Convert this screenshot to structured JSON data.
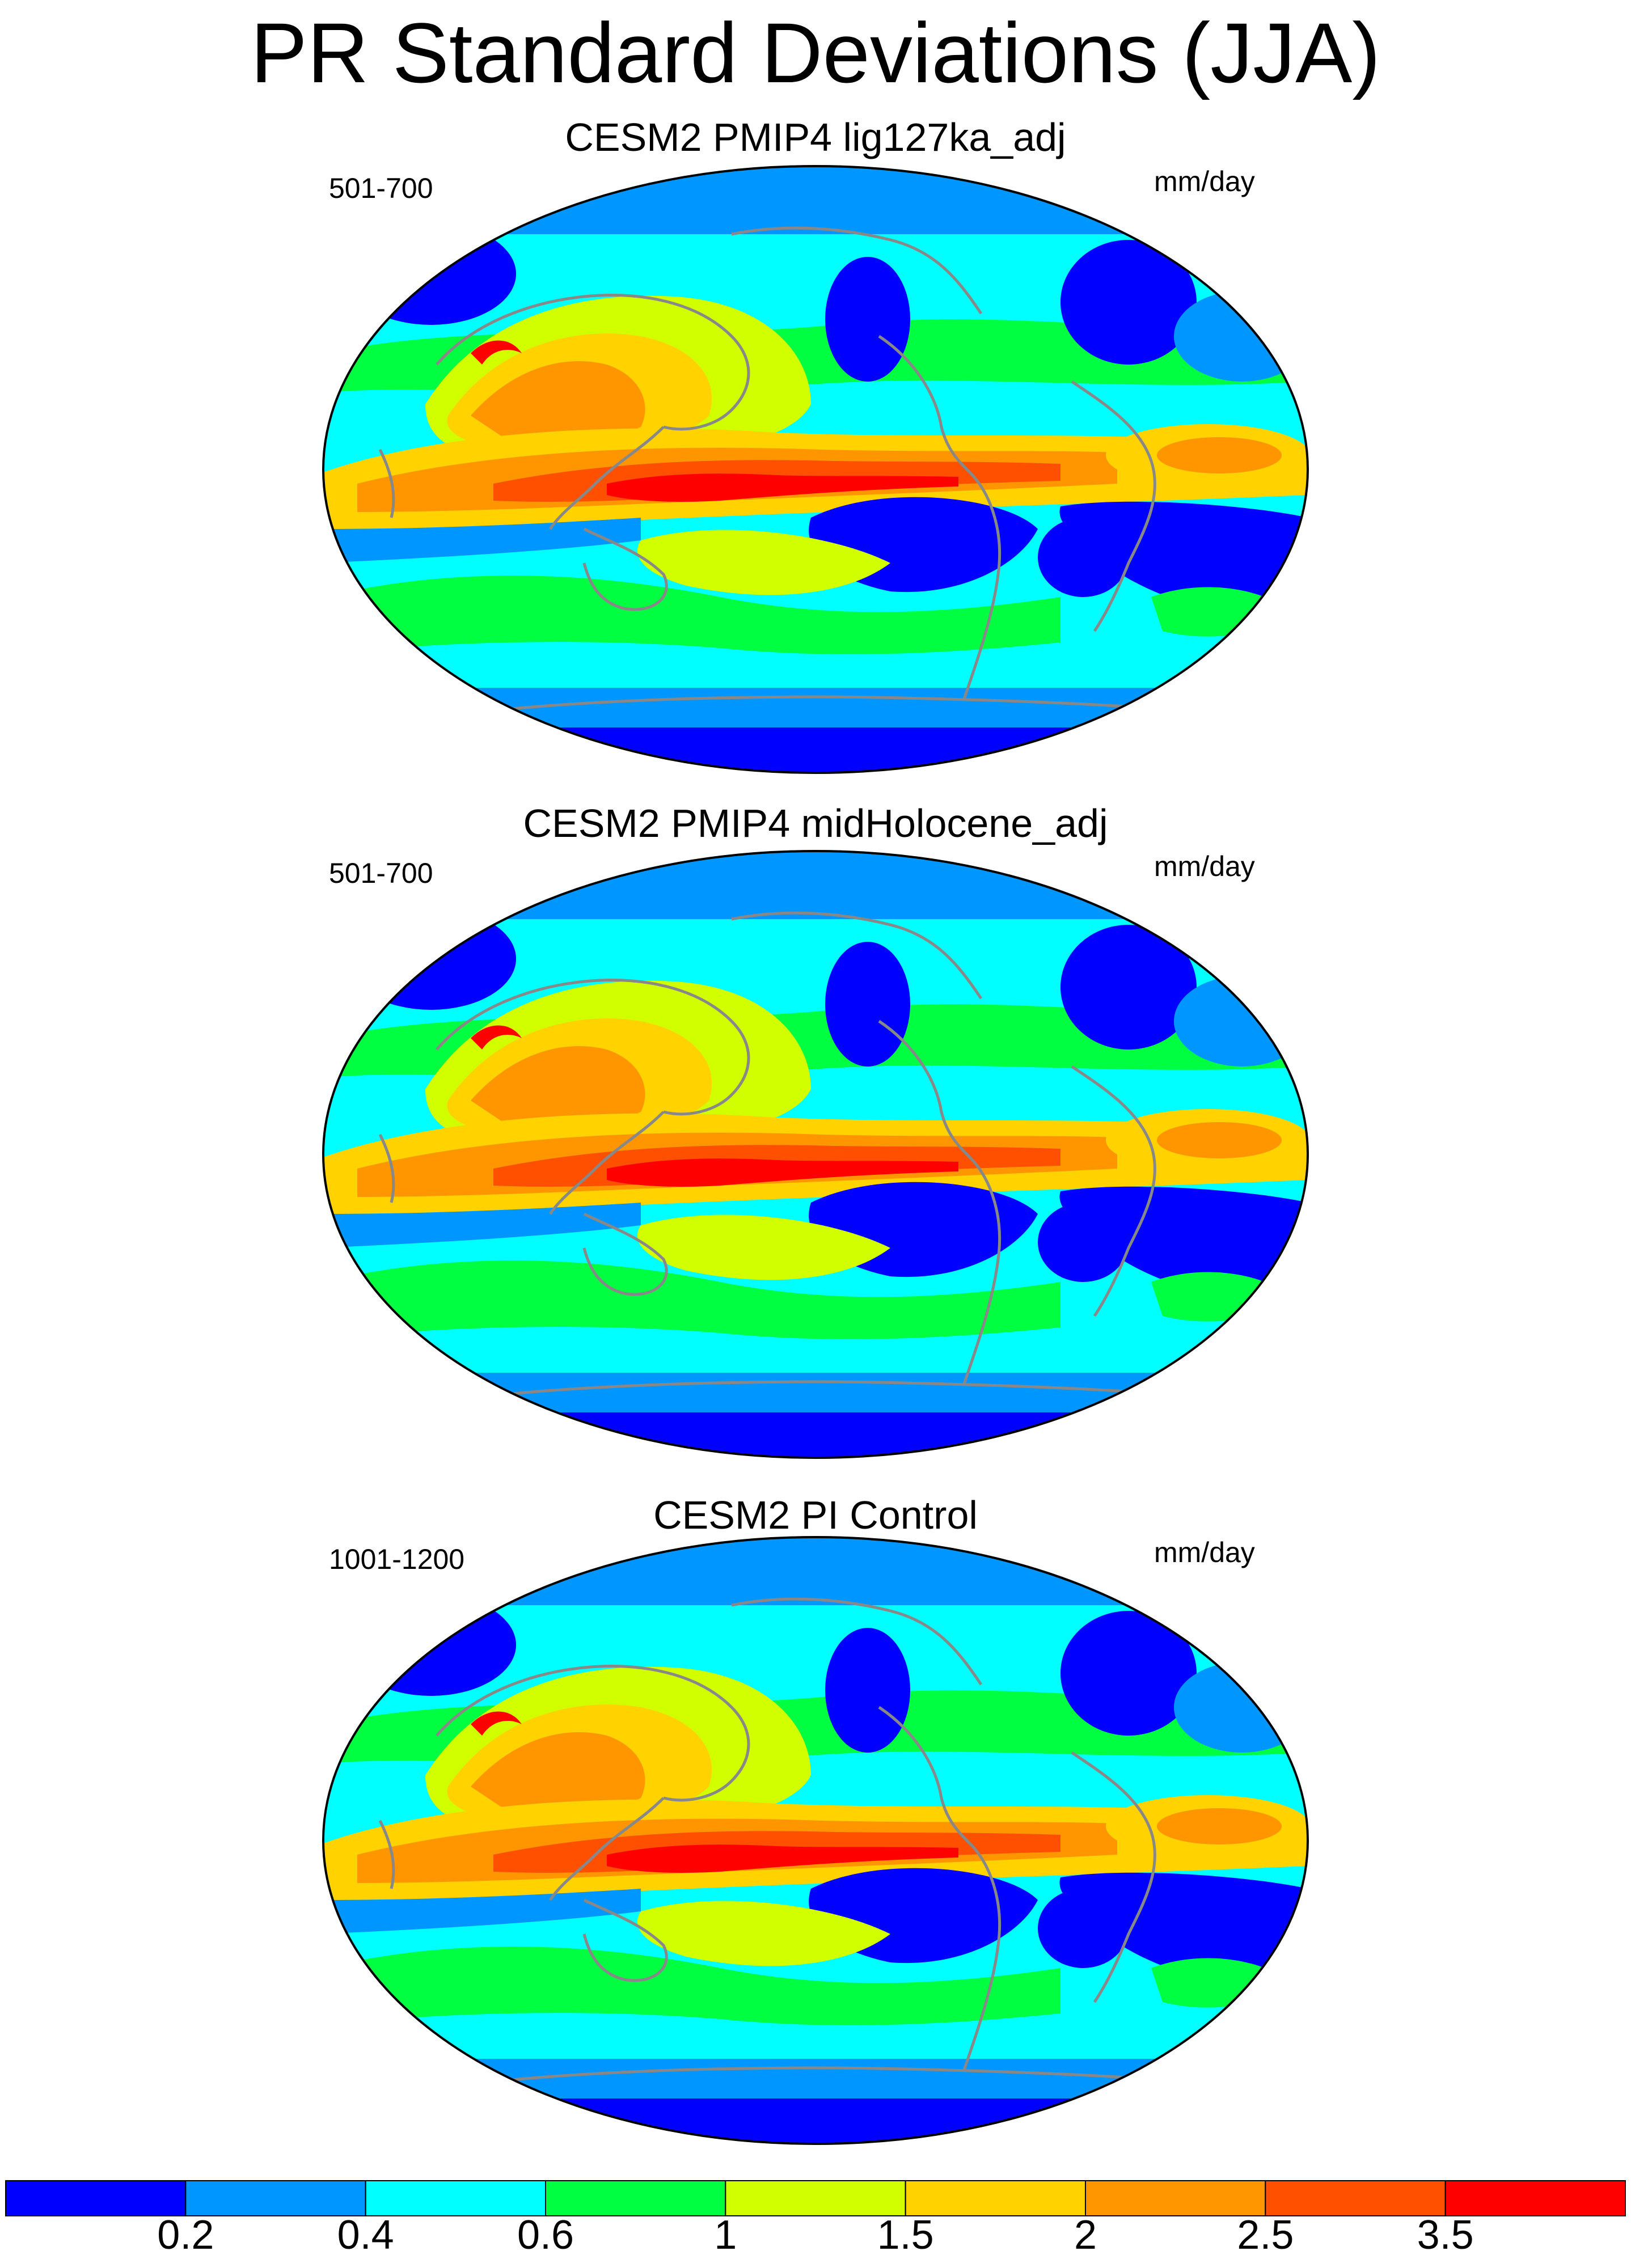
{
  "title": "PR Standard Deviations (JJA)",
  "panels": [
    {
      "title": "CESM2 PMIP4 lig127ka_adj",
      "left_label": "501-700",
      "right_label": "mm/day"
    },
    {
      "title": "CESM2 PMIP4 midHolocene_adj",
      "left_label": "501-700",
      "right_label": "mm/day"
    },
    {
      "title": "CESM2 PI Control",
      "left_label": "1001-1200",
      "right_label": "mm/day"
    }
  ],
  "colorbar": {
    "colors": [
      "#0000ff",
      "#0096ff",
      "#00ffff",
      "#00ff40",
      "#d2ff00",
      "#ffd200",
      "#ff9600",
      "#ff5000",
      "#ff0000"
    ],
    "labels": [
      "0.2",
      "0.4",
      "0.6",
      "1",
      "1.5",
      "2",
      "2.5",
      "3.5"
    ]
  },
  "colors": {
    "coastline": "#888888",
    "outline": "#000000"
  }
}
